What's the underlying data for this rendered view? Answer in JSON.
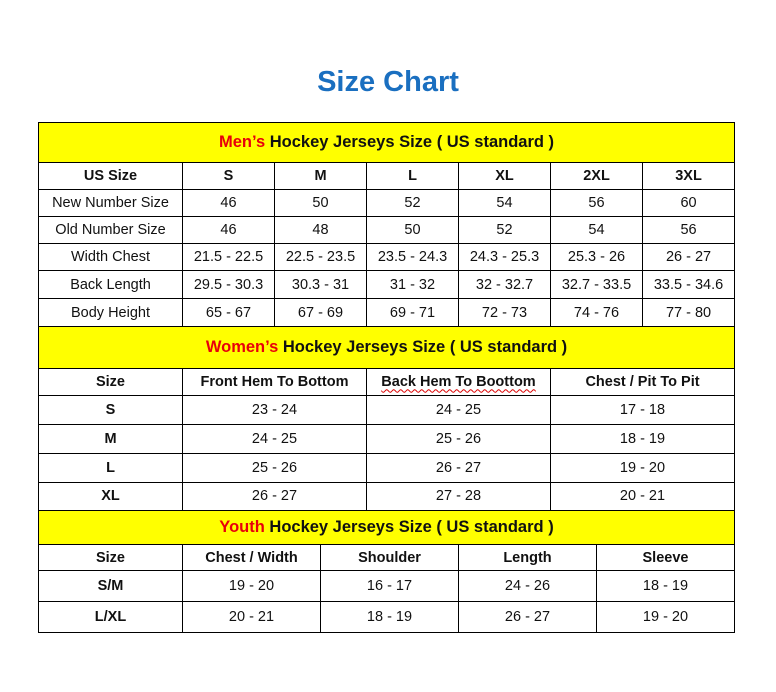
{
  "title": "Size Chart",
  "colors": {
    "title_blue": "#1a6fc0",
    "section_yellow": "#ffff00",
    "highlight_red": "#e8000b"
  },
  "sections": [
    {
      "key": "men",
      "highlight": "Men’s",
      "heading": " Hockey Jerseys Size ( US standard )",
      "columns": [
        "US Size",
        "S",
        "M",
        "L",
        "XL",
        "2XL",
        "3XL"
      ],
      "rows": [
        [
          "New Number Size",
          "46",
          "50",
          "52",
          "54",
          "56",
          "60"
        ],
        [
          "Old Number Size",
          "46",
          "48",
          "50",
          "52",
          "54",
          "56"
        ],
        [
          "Width Chest",
          "21.5 - 22.5",
          "22.5 - 23.5",
          "23.5 - 24.3",
          "24.3 - 25.3",
          "25.3 - 26",
          "26 - 27"
        ],
        [
          "Back Length",
          "29.5 - 30.3",
          "30.3 - 31",
          "31 - 32",
          "32 - 32.7",
          "32.7 - 33.5",
          "33.5 - 34.6"
        ],
        [
          "Body Height",
          "65 - 67",
          "67 - 69",
          "69 - 71",
          "72 - 73",
          "74 - 76",
          "77 - 80"
        ]
      ]
    },
    {
      "key": "women",
      "highlight": "Women’s",
      "heading": " Hockey Jerseys Size ( US standard )",
      "columns": [
        "Size",
        "Front Hem To Bottom",
        "Back Hem To Boottom",
        "Chest / Pit To Pit"
      ],
      "rows": [
        [
          "S",
          "23 - 24",
          "24 - 25",
          "17 - 18"
        ],
        [
          "M",
          "24 - 25",
          "25 - 26",
          "18 - 19"
        ],
        [
          "L",
          "25 - 26",
          "26 - 27",
          "19 - 20"
        ],
        [
          "XL",
          "26 - 27",
          "27 - 28",
          "20 - 21"
        ]
      ]
    },
    {
      "key": "youth",
      "highlight": "Youth",
      "heading": " Hockey Jerseys Size ( US standard )",
      "columns": [
        "Size",
        "Chest / Width",
        "Shoulder",
        "Length",
        "Sleeve"
      ],
      "rows": [
        [
          "S/M",
          "19 - 20",
          "16 - 17",
          "24 - 26",
          "18 - 19"
        ],
        [
          "L/XL",
          "20 - 21",
          "18 - 19",
          "26 - 27",
          "19 - 20"
        ]
      ]
    }
  ]
}
